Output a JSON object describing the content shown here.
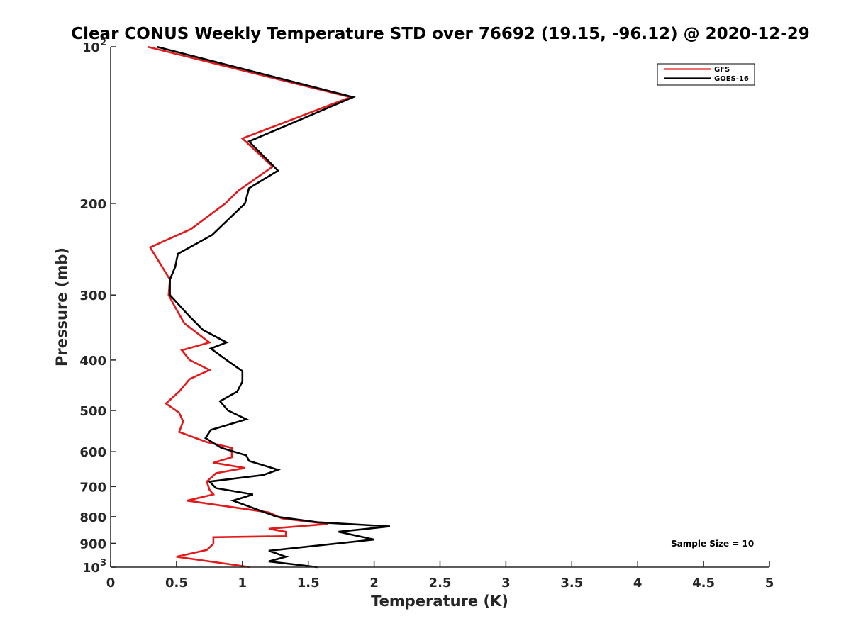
{
  "chart_data": {
    "type": "line",
    "title": "Clear CONUS Weekly Temperature STD over 76692 (19.15, -96.12) @ 2020-12-29",
    "xlabel": "Temperature (K)",
    "ylabel": "Pressure (mb)",
    "xlim": [
      0,
      5
    ],
    "ylim": [
      100,
      1000
    ],
    "yscale": "log",
    "y_reversed": true,
    "x_ticks": [
      0,
      0.5,
      1,
      1.5,
      2,
      2.5,
      3,
      3.5,
      4,
      4.5,
      5
    ],
    "x_tick_labels": [
      "0",
      "0.5",
      "1",
      "1.5",
      "2",
      "2.5",
      "3",
      "3.5",
      "4",
      "4.5",
      "5"
    ],
    "y_ticks": [
      {
        "value": 100,
        "base": "10",
        "exp": "2"
      },
      {
        "value": 200,
        "label": "200"
      },
      {
        "value": 300,
        "label": "300"
      },
      {
        "value": 400,
        "label": "400"
      },
      {
        "value": 500,
        "label": "500"
      },
      {
        "value": 600,
        "label": "600"
      },
      {
        "value": 700,
        "label": "700"
      },
      {
        "value": 800,
        "label": "800"
      },
      {
        "value": 900,
        "label": "900"
      },
      {
        "value": 1000,
        "base": "10",
        "exp": "3"
      }
    ],
    "legend": {
      "position": "top-right",
      "entries": [
        "GFS",
        "GOES-16"
      ]
    },
    "annotation": "Sample Size = 10",
    "series": [
      {
        "name": "GFS",
        "color": "#e31a1c",
        "points": [
          [
            0.28,
            100
          ],
          [
            1.82,
            125
          ],
          [
            1.0,
            150
          ],
          [
            1.23,
            170
          ],
          [
            0.97,
            189
          ],
          [
            0.87,
            200
          ],
          [
            0.61,
            224
          ],
          [
            0.3,
            243
          ],
          [
            0.45,
            280
          ],
          [
            0.44,
            300
          ],
          [
            0.5,
            320
          ],
          [
            0.56,
            340
          ],
          [
            0.75,
            370
          ],
          [
            0.54,
            383
          ],
          [
            0.6,
            400
          ],
          [
            0.75,
            418
          ],
          [
            0.6,
            435
          ],
          [
            0.52,
            460
          ],
          [
            0.42,
            485
          ],
          [
            0.52,
            505
          ],
          [
            0.55,
            525
          ],
          [
            0.52,
            550
          ],
          [
            0.73,
            575
          ],
          [
            0.92,
            590
          ],
          [
            0.92,
            615
          ],
          [
            0.78,
            630
          ],
          [
            1.02,
            645
          ],
          [
            0.8,
            660
          ],
          [
            0.73,
            685
          ],
          [
            0.75,
            710
          ],
          [
            0.78,
            725
          ],
          [
            0.58,
            745
          ],
          [
            1.2,
            785
          ],
          [
            1.3,
            806
          ],
          [
            1.65,
            826
          ],
          [
            1.2,
            844
          ],
          [
            1.33,
            855
          ],
          [
            1.33,
            872
          ],
          [
            0.78,
            876
          ],
          [
            0.78,
            902
          ],
          [
            0.73,
            927
          ],
          [
            0.5,
            955
          ],
          [
            1.06,
            1000
          ]
        ]
      },
      {
        "name": "GOES-16",
        "color": "#000000",
        "points": [
          [
            0.35,
            100
          ],
          [
            1.84,
            125
          ],
          [
            1.05,
            152
          ],
          [
            1.27,
            173
          ],
          [
            1.05,
            187
          ],
          [
            1.02,
            200
          ],
          [
            0.77,
            230
          ],
          [
            0.51,
            250
          ],
          [
            0.49,
            265
          ],
          [
            0.45,
            280
          ],
          [
            0.45,
            300
          ],
          [
            0.6,
            330
          ],
          [
            0.7,
            350
          ],
          [
            0.88,
            370
          ],
          [
            0.76,
            380
          ],
          [
            0.88,
            400
          ],
          [
            1.0,
            420
          ],
          [
            1.0,
            440
          ],
          [
            0.96,
            460
          ],
          [
            0.83,
            480
          ],
          [
            0.89,
            500
          ],
          [
            1.03,
            520
          ],
          [
            0.76,
            545
          ],
          [
            0.72,
            565
          ],
          [
            0.84,
            590
          ],
          [
            1.03,
            610
          ],
          [
            1.05,
            625
          ],
          [
            1.27,
            650
          ],
          [
            1.16,
            665
          ],
          [
            0.75,
            685
          ],
          [
            0.8,
            705
          ],
          [
            1.08,
            725
          ],
          [
            0.93,
            745
          ],
          [
            1.26,
            800
          ],
          [
            1.57,
            820
          ],
          [
            2.12,
            835
          ],
          [
            1.73,
            855
          ],
          [
            2.0,
            885
          ],
          [
            1.2,
            930
          ],
          [
            1.33,
            955
          ],
          [
            1.2,
            975
          ],
          [
            1.57,
            1000
          ]
        ]
      }
    ]
  }
}
